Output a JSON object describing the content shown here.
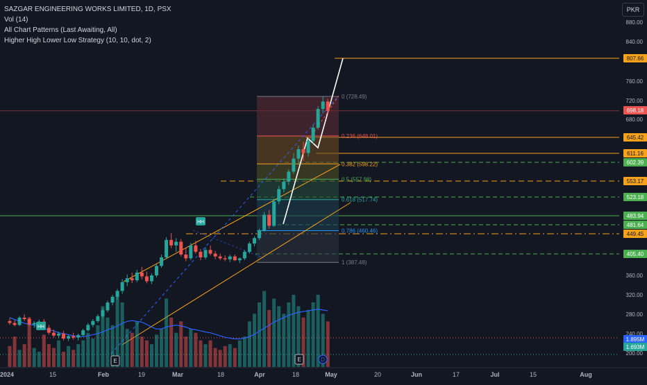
{
  "header": {
    "title": "SAZGAR ENGINEERING WORKS LIMITED, 1D, PSX",
    "indicator1": "Vol (14)",
    "indicator2": "All Chart Patterns (Last Awaiting, All)",
    "indicator3": "Higher High Lower Low Strategy (10, 10, dot, 2)"
  },
  "currency_button": "PKR",
  "colors": {
    "background": "#131722",
    "up": "#26a69a",
    "down": "#ef5350",
    "orange": "#f7a21b",
    "green": "#4caf50",
    "blue": "#2962ff",
    "white": "#ffffff"
  },
  "chart_data": {
    "type": "candlestick",
    "price_axis": {
      "ticks": [
        "880.00",
        "840.00",
        "760.00",
        "720.00",
        "680.00",
        "360.00",
        "320.00",
        "280.00",
        "240.00",
        "200.00"
      ],
      "labels": [
        {
          "text": "807.66",
          "value": 807.66,
          "color": "#f7a21b",
          "text_color": "#131722"
        },
        {
          "text": "698.18",
          "value": 698.18,
          "color": "#ef5350",
          "text_color": "#ffffff"
        },
        {
          "text": "645.42",
          "value": 645.42,
          "color": "#f7a21b",
          "text_color": "#131722"
        },
        {
          "text": "611.16",
          "value": 611.16,
          "color": "#f7a21b",
          "text_color": "#131722"
        },
        {
          "text": "602.39",
          "value": 602.39,
          "color": "#4caf50",
          "text_color": "#ffffff"
        },
        {
          "text": "553.17",
          "value": 553.17,
          "color": "#f7a21b",
          "text_color": "#131722"
        },
        {
          "text": "523.18",
          "value": 523.18,
          "color": "#4caf50",
          "text_color": "#ffffff"
        },
        {
          "text": "483.94",
          "value": 483.94,
          "color": "#4caf50",
          "text_color": "#ffffff"
        },
        {
          "text": "481.64",
          "value": 481.64,
          "color": "#4caf50",
          "text_color": "#ffffff"
        },
        {
          "text": "449.45",
          "value": 449.45,
          "color": "#f7a21b",
          "text_color": "#131722"
        },
        {
          "text": "405.40",
          "value": 405.4,
          "color": "#4caf50",
          "text_color": "#ffffff"
        },
        {
          "text": "1.895M",
          "value": null,
          "color": "#2962ff",
          "text_color": "#ffffff"
        },
        {
          "text": "1.693M",
          "value": null,
          "color": "#26a69a",
          "text_color": "#ffffff"
        }
      ]
    },
    "time_axis": [
      "2024",
      "15",
      "Feb",
      "19",
      "Mar",
      "18",
      "Apr",
      "18",
      "May",
      "20",
      "Jun",
      "17",
      "Jul",
      "15",
      "Aug"
    ],
    "fibonacci": [
      {
        "label": "0 (728.49)",
        "value": 728.49
      },
      {
        "label": "0.236 (648.01)",
        "value": 648.01
      },
      {
        "label": "0.382 (598.22)",
        "value": 598.22
      },
      {
        "label": "0.5 (557.98)",
        "value": 557.98
      },
      {
        "label": "0.618 (517.74)",
        "value": 517.74
      },
      {
        "label": "0.786 (460.46)",
        "value": 460.46
      },
      {
        "label": "1 (387.48)",
        "value": 387.48
      }
    ],
    "pattern_markers": [
      "HH",
      "HH"
    ],
    "event_markers": [
      "E",
      "E",
      "D"
    ],
    "candles": [
      {
        "o": 266,
        "h": 272,
        "l": 258,
        "c": 262
      },
      {
        "o": 262,
        "h": 268,
        "l": 255,
        "c": 258
      },
      {
        "o": 258,
        "h": 276,
        "l": 256,
        "c": 273
      },
      {
        "o": 273,
        "h": 280,
        "l": 266,
        "c": 270
      },
      {
        "o": 270,
        "h": 274,
        "l": 256,
        "c": 259
      },
      {
        "o": 259,
        "h": 266,
        "l": 252,
        "c": 262
      },
      {
        "o": 262,
        "h": 269,
        "l": 257,
        "c": 265
      },
      {
        "o": 265,
        "h": 270,
        "l": 248,
        "c": 252
      },
      {
        "o": 252,
        "h": 258,
        "l": 238,
        "c": 242
      },
      {
        "o": 242,
        "h": 248,
        "l": 232,
        "c": 236
      },
      {
        "o": 236,
        "h": 244,
        "l": 230,
        "c": 240
      },
      {
        "o": 240,
        "h": 246,
        "l": 226,
        "c": 230
      },
      {
        "o": 230,
        "h": 238,
        "l": 225,
        "c": 235
      },
      {
        "o": 235,
        "h": 242,
        "l": 228,
        "c": 232
      },
      {
        "o": 232,
        "h": 240,
        "l": 226,
        "c": 237
      },
      {
        "o": 237,
        "h": 250,
        "l": 234,
        "c": 247
      },
      {
        "o": 247,
        "h": 262,
        "l": 244,
        "c": 258
      },
      {
        "o": 258,
        "h": 270,
        "l": 253,
        "c": 266
      },
      {
        "o": 266,
        "h": 280,
        "l": 262,
        "c": 276
      },
      {
        "o": 276,
        "h": 292,
        "l": 272,
        "c": 288
      },
      {
        "o": 288,
        "h": 308,
        "l": 284,
        "c": 304
      },
      {
        "o": 304,
        "h": 320,
        "l": 298,
        "c": 316
      },
      {
        "o": 316,
        "h": 332,
        "l": 310,
        "c": 328
      },
      {
        "o": 328,
        "h": 352,
        "l": 322,
        "c": 346
      },
      {
        "o": 346,
        "h": 362,
        "l": 338,
        "c": 354
      },
      {
        "o": 354,
        "h": 366,
        "l": 344,
        "c": 350
      },
      {
        "o": 350,
        "h": 372,
        "l": 346,
        "c": 366
      },
      {
        "o": 366,
        "h": 378,
        "l": 352,
        "c": 358
      },
      {
        "o": 358,
        "h": 368,
        "l": 344,
        "c": 348
      },
      {
        "o": 348,
        "h": 364,
        "l": 342,
        "c": 360
      },
      {
        "o": 360,
        "h": 384,
        "l": 356,
        "c": 380
      },
      {
        "o": 380,
        "h": 404,
        "l": 376,
        "c": 398
      },
      {
        "o": 398,
        "h": 442,
        "l": 394,
        "c": 436
      },
      {
        "o": 436,
        "h": 452,
        "l": 418,
        "c": 424
      },
      {
        "o": 424,
        "h": 440,
        "l": 410,
        "c": 432
      },
      {
        "o": 432,
        "h": 438,
        "l": 400,
        "c": 404
      },
      {
        "o": 404,
        "h": 418,
        "l": 390,
        "c": 396
      },
      {
        "o": 396,
        "h": 430,
        "l": 392,
        "c": 424
      },
      {
        "o": 424,
        "h": 434,
        "l": 406,
        "c": 410
      },
      {
        "o": 410,
        "h": 416,
        "l": 392,
        "c": 398
      },
      {
        "o": 398,
        "h": 420,
        "l": 394,
        "c": 414
      },
      {
        "o": 414,
        "h": 424,
        "l": 402,
        "c": 406
      },
      {
        "o": 406,
        "h": 412,
        "l": 394,
        "c": 400
      },
      {
        "o": 400,
        "h": 406,
        "l": 392,
        "c": 396
      },
      {
        "o": 396,
        "h": 402,
        "l": 390,
        "c": 394
      },
      {
        "o": 394,
        "h": 404,
        "l": 388,
        "c": 400
      },
      {
        "o": 400,
        "h": 404,
        "l": 390,
        "c": 392
      },
      {
        "o": 392,
        "h": 398,
        "l": 386,
        "c": 396
      },
      {
        "o": 396,
        "h": 414,
        "l": 392,
        "c": 410
      },
      {
        "o": 410,
        "h": 432,
        "l": 406,
        "c": 428
      },
      {
        "o": 428,
        "h": 444,
        "l": 422,
        "c": 440
      },
      {
        "o": 440,
        "h": 468,
        "l": 436,
        "c": 462
      },
      {
        "o": 462,
        "h": 492,
        "l": 456,
        "c": 486
      },
      {
        "o": 486,
        "h": 496,
        "l": 468,
        "c": 478
      },
      {
        "o": 478,
        "h": 520,
        "l": 474,
        "c": 514
      },
      {
        "o": 514,
        "h": 544,
        "l": 508,
        "c": 538
      },
      {
        "o": 538,
        "h": 560,
        "l": 532,
        "c": 552
      },
      {
        "o": 552,
        "h": 584,
        "l": 546,
        "c": 578
      },
      {
        "o": 578,
        "h": 612,
        "l": 572,
        "c": 606
      },
      {
        "o": 606,
        "h": 628,
        "l": 596,
        "c": 620
      },
      {
        "o": 620,
        "h": 636,
        "l": 604,
        "c": 612
      },
      {
        "o": 612,
        "h": 644,
        "l": 608,
        "c": 638
      },
      {
        "o": 638,
        "h": 670,
        "l": 632,
        "c": 664
      },
      {
        "o": 664,
        "h": 708,
        "l": 660,
        "c": 702
      },
      {
        "o": 702,
        "h": 728,
        "l": 692,
        "c": 718
      },
      {
        "o": 718,
        "h": 724,
        "l": 690,
        "c": 698
      }
    ],
    "volumes": [
      0.55,
      0.8,
      0.45,
      0.6,
      1.3,
      0.5,
      0.4,
      0.85,
      0.6,
      0.5,
      0.7,
      0.4,
      0.55,
      0.45,
      0.6,
      0.7,
      0.9,
      0.75,
      1.1,
      1.6,
      1.3,
      1.1,
      1.9,
      1.7,
      1.0,
      0.9,
      1.2,
      0.8,
      0.7,
      0.6,
      0.85,
      1.0,
      1.8,
      1.3,
      0.9,
      1.2,
      0.8,
      1.0,
      0.9,
      0.7,
      0.6,
      0.7,
      0.5,
      0.45,
      0.55,
      0.6,
      0.5,
      0.7,
      0.8,
      1.2,
      1.4,
      1.7,
      2.0,
      1.5,
      1.8,
      1.6,
      1.4,
      1.7,
      1.9,
      1.6,
      1.3,
      1.5,
      1.7,
      1.9,
      1.4,
      1.2
    ],
    "volume_ma": [
      1.3,
      1.25,
      1.2,
      1.15,
      1.12,
      1.1,
      1.05,
      1.0,
      0.98,
      0.95,
      0.9,
      0.88,
      0.85,
      0.82,
      0.8,
      0.8,
      0.82,
      0.85,
      0.88,
      0.92,
      0.98,
      1.02,
      1.08,
      1.15,
      1.2,
      1.22,
      1.2,
      1.18,
      1.12,
      1.05,
      1.0,
      1.0,
      1.05,
      1.08,
      1.1,
      1.08,
      1.05,
      1.0,
      0.98,
      0.95,
      0.92,
      0.9,
      0.86,
      0.82,
      0.78,
      0.76,
      0.74,
      0.74,
      0.76,
      0.8,
      0.86,
      0.94,
      1.02,
      1.1,
      1.18,
      1.24,
      1.3,
      1.36,
      1.4,
      1.44,
      1.46,
      1.48,
      1.5,
      1.52,
      1.5,
      1.48
    ]
  }
}
